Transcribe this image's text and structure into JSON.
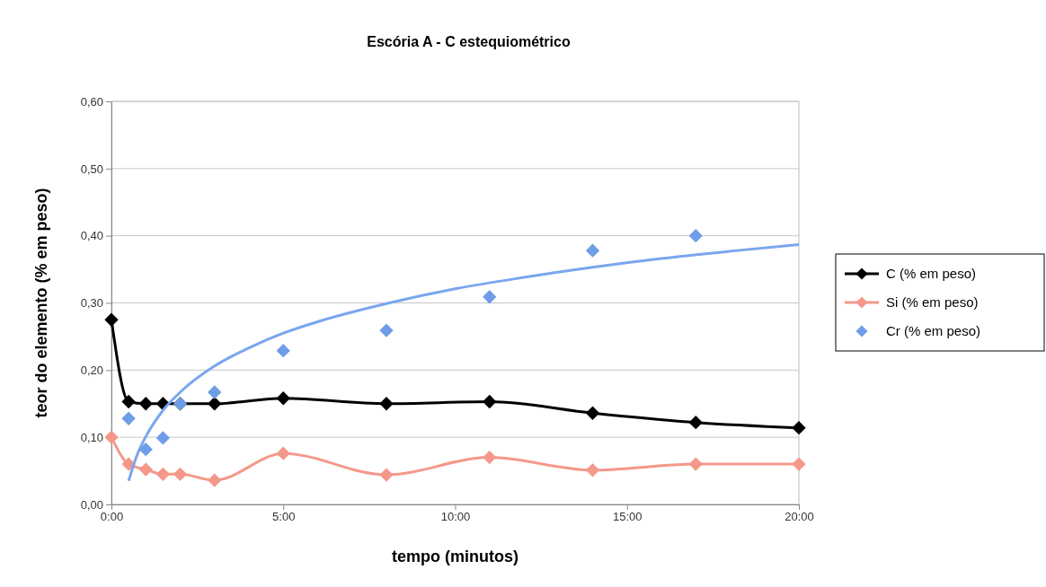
{
  "chart_data": {
    "type": "line",
    "title": "Escória A - C estequiométrico",
    "xlabel": "tempo (minutos)",
    "ylabel": "teor do elemento (% em peso)",
    "x": [
      0,
      0.5,
      1,
      1.5,
      2,
      3,
      5,
      8,
      11,
      14,
      17,
      20
    ],
    "series": [
      {
        "name": "C (% em peso)",
        "color": "#000000",
        "marker": "diamond",
        "values": [
          0.275,
          0.153,
          0.15,
          0.15,
          0.15,
          0.15,
          0.158,
          0.15,
          0.153,
          0.136,
          0.122,
          0.114
        ]
      },
      {
        "name": "Si (% em peso)",
        "color": "#f4988a",
        "marker": "diamond",
        "values": [
          0.1,
          0.06,
          0.052,
          0.045,
          0.045,
          0.036,
          0.076,
          0.044,
          0.07,
          0.051,
          0.06,
          0.06
        ]
      },
      {
        "name": "Cr (% em peso)",
        "type": "scatter",
        "color": "#6f9de8",
        "marker": "diamond",
        "x": [
          0.5,
          1,
          1.5,
          2,
          3,
          5,
          8,
          11,
          14,
          17
        ],
        "values": [
          0.128,
          0.082,
          0.099,
          0.15,
          0.167,
          0.229,
          0.259,
          0.309,
          0.378,
          0.4
        ]
      },
      {
        "type": "line",
        "color": "#7aa6ee",
        "marker": "none",
        "x": [
          0.5,
          0.75,
          1,
          1.5,
          2,
          3,
          4,
          5,
          6,
          8,
          10,
          12,
          14,
          16,
          18,
          20
        ],
        "values": [
          0.035,
          0.074,
          0.101,
          0.14,
          0.167,
          0.206,
          0.233,
          0.255,
          0.272,
          0.299,
          0.321,
          0.338,
          0.353,
          0.366,
          0.377,
          0.387
        ]
      }
    ],
    "xlim": [
      0,
      20
    ],
    "xticks": [
      {
        "value": 0,
        "label": "0:00"
      },
      {
        "value": 5,
        "label": "5:00"
      },
      {
        "value": 10,
        "label": "10:00"
      },
      {
        "value": 15,
        "label": "15:00"
      },
      {
        "value": 20,
        "label": "20:00"
      }
    ],
    "ylim": [
      0,
      0.6
    ],
    "yticks": [
      {
        "value": 0,
        "label": "0,00"
      },
      {
        "value": 0.1,
        "label": "0,10"
      },
      {
        "value": 0.2,
        "label": "0,20"
      },
      {
        "value": 0.3,
        "label": "0,30"
      },
      {
        "value": 0.4,
        "label": "0,40"
      },
      {
        "value": 0.5,
        "label": "0,50"
      },
      {
        "value": 0.6,
        "label": "0,60"
      }
    ],
    "grid": "y",
    "legend": "right"
  }
}
